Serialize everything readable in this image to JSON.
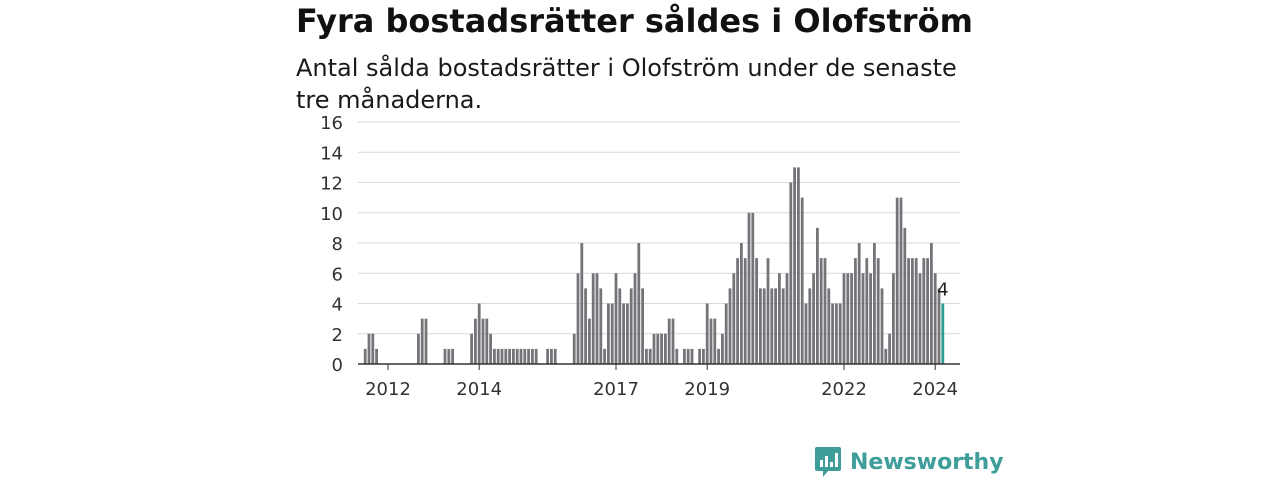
{
  "title": "Fyra bostadsrätter såldes i Olofström",
  "subtitle": "Antal sålda bostadsrätter i Olofström under de senaste tre månaderna.",
  "brand": {
    "name": "Newsworthy",
    "color": "#3f9e9a",
    "icon": "chart-bubble-icon"
  },
  "chart_data": {
    "type": "bar",
    "title": "",
    "xlabel": "",
    "ylabel": "",
    "ylim": [
      0,
      16
    ],
    "yticks": [
      0,
      2,
      4,
      6,
      8,
      10,
      12,
      14,
      16
    ],
    "xticks": [
      "2012",
      "2014",
      "2017",
      "2019",
      "2022",
      "2024"
    ],
    "grid": true,
    "bar_color": "#75747a",
    "highlight_color": "#2a9d8f",
    "highlight_label": "4",
    "series": [
      {
        "values": [
          0,
          1,
          2,
          2,
          1,
          0,
          0,
          0,
          0,
          0,
          0,
          0,
          0,
          0,
          0,
          2,
          3,
          3,
          0,
          0,
          0,
          0,
          1,
          1,
          1,
          0,
          0,
          0,
          0,
          2,
          3,
          4,
          3,
          3,
          2,
          1,
          1,
          1,
          1,
          1,
          1,
          1,
          1,
          1,
          1,
          1,
          1,
          0,
          0,
          1,
          1,
          1,
          0,
          0,
          0,
          0,
          2,
          6,
          8,
          5,
          3,
          6,
          6,
          5,
          1,
          4,
          4,
          6,
          5,
          4,
          4,
          5,
          6,
          8,
          5,
          1,
          1,
          2,
          2,
          2,
          2,
          3,
          3,
          1,
          0,
          1,
          1,
          1,
          0,
          1,
          1,
          4,
          3,
          3,
          1,
          2,
          4,
          5,
          6,
          7,
          8,
          7,
          10,
          10,
          7,
          5,
          5,
          7,
          5,
          5,
          6,
          5,
          6,
          12,
          13,
          13,
          11,
          4,
          5,
          6,
          9,
          7,
          7,
          5,
          4,
          4,
          4,
          6,
          6,
          6,
          7,
          8,
          6,
          7,
          6,
          8,
          7,
          5,
          1,
          2,
          6,
          11,
          11,
          9,
          7,
          7,
          7,
          6,
          7,
          7,
          8,
          6,
          5,
          4
        ]
      }
    ]
  }
}
